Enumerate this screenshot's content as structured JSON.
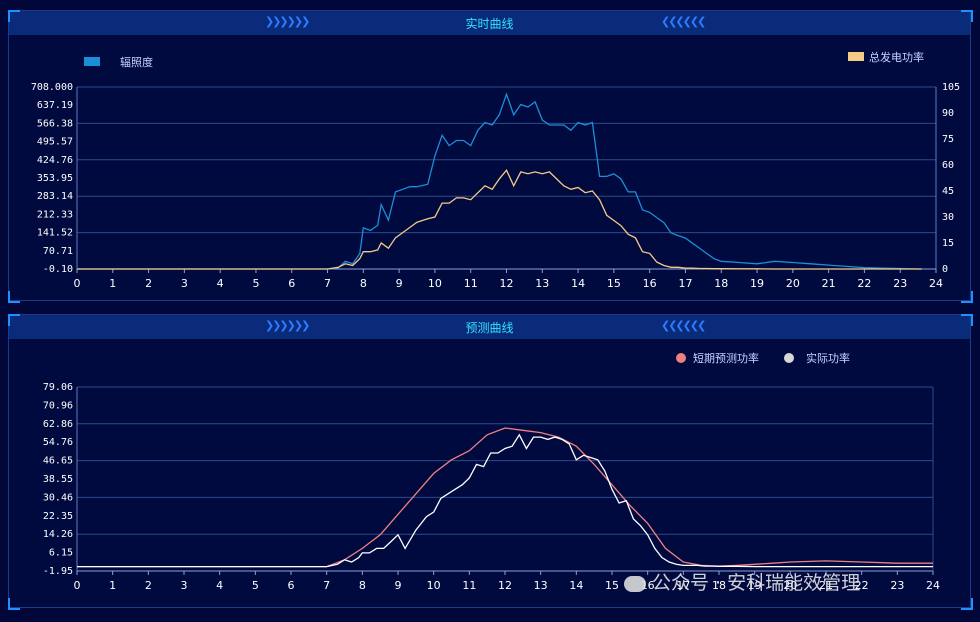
{
  "charts": [
    {
      "title": "实时曲线",
      "type": "line",
      "legend": [
        "辐照度",
        "总发电功率"
      ],
      "left_axis_ticks": [
        "708.000",
        "637.19",
        "566.38",
        "495.57",
        "424.76",
        "353.95",
        "283.14",
        "212.33",
        "141.52",
        "70.71",
        "-0.10"
      ],
      "right_axis_ticks": [
        "105",
        "90",
        "75",
        "60",
        "45",
        "30",
        "15",
        "0"
      ],
      "x_ticks": [
        "0",
        "1",
        "2",
        "3",
        "4",
        "5",
        "6",
        "7",
        "8",
        "9",
        "10",
        "11",
        "12",
        "13",
        "14",
        "15",
        "16",
        "17",
        "18",
        "19",
        "20",
        "21",
        "22",
        "23",
        "24"
      ]
    },
    {
      "title": "预测曲线",
      "type": "line",
      "legend": [
        "短期预测功率",
        "实际功率"
      ],
      "left_axis_ticks": [
        "79.06",
        "70.96",
        "62.86",
        "54.76",
        "46.65",
        "38.55",
        "30.46",
        "22.35",
        "14.26",
        "6.15",
        "-1.95"
      ],
      "x_ticks": [
        "0",
        "1",
        "2",
        "3",
        "4",
        "5",
        "6",
        "7",
        "8",
        "9",
        "10",
        "11",
        "12",
        "13",
        "14",
        "15",
        "16",
        "17",
        "18",
        "19",
        "20",
        "21",
        "22",
        "23",
        "24"
      ]
    }
  ],
  "watermark": "公众号 · 安科瑞能效管理",
  "chart_data": [
    {
      "type": "line",
      "title": "实时曲线",
      "ylim": [
        -0.1,
        708.0
      ],
      "y2lim": [
        0,
        105
      ],
      "xlim": [
        0,
        24
      ],
      "series": [
        {
          "name": "辐照度",
          "axis": "left",
          "color": "#1a8fd6",
          "x": [
            0,
            7.0,
            7.3,
            7.5,
            7.7,
            7.8,
            7.9,
            8.0,
            8.2,
            8.4,
            8.5,
            8.7,
            8.9,
            9.1,
            9.3,
            9.5,
            9.8,
            10.0,
            10.2,
            10.4,
            10.6,
            10.8,
            11.0,
            11.2,
            11.4,
            11.6,
            11.8,
            12.0,
            12.2,
            12.4,
            12.6,
            12.8,
            13.0,
            13.2,
            13.4,
            13.6,
            13.8,
            14.0,
            14.2,
            14.4,
            14.6,
            14.8,
            15.0,
            15.2,
            15.4,
            15.6,
            15.8,
            16.0,
            16.2,
            16.4,
            16.6,
            16.8,
            17.0,
            17.2,
            17.4,
            17.6,
            17.8,
            18.0,
            18.5,
            19.0,
            19.5,
            20.0,
            20.5,
            21.0,
            21.5,
            22.0,
            22.5,
            23.0,
            23.5,
            23.6
          ],
          "y": [
            0,
            0,
            5,
            30,
            20,
            40,
            60,
            160,
            150,
            170,
            250,
            190,
            300,
            310,
            320,
            320,
            330,
            440,
            520,
            480,
            500,
            500,
            480,
            540,
            570,
            560,
            600,
            680,
            600,
            640,
            630,
            650,
            580,
            560,
            560,
            560,
            540,
            570,
            560,
            570,
            360,
            360,
            370,
            350,
            300,
            300,
            230,
            220,
            200,
            180,
            140,
            130,
            120,
            100,
            80,
            60,
            40,
            30,
            25,
            20,
            30,
            25,
            20,
            15,
            10,
            5,
            3,
            2,
            0,
            0
          ]
        },
        {
          "name": "总发电功率",
          "axis": "right",
          "color": "#f5c986",
          "x": [
            0,
            7.0,
            7.3,
            7.5,
            7.7,
            7.8,
            7.9,
            8.0,
            8.2,
            8.4,
            8.5,
            8.7,
            8.9,
            9.1,
            9.3,
            9.5,
            9.8,
            10.0,
            10.2,
            10.4,
            10.6,
            10.8,
            11.0,
            11.2,
            11.4,
            11.6,
            11.8,
            12.0,
            12.2,
            12.4,
            12.6,
            12.8,
            13.0,
            13.2,
            13.4,
            13.6,
            13.8,
            14.0,
            14.2,
            14.4,
            14.6,
            14.8,
            15.0,
            15.2,
            15.4,
            15.6,
            15.8,
            16.0,
            16.2,
            16.4,
            16.6,
            16.8,
            17.0,
            17.2,
            17.4,
            17.6,
            17.8,
            18.0,
            18.5,
            19.0,
            19.5,
            20.0,
            20.5,
            21.0,
            21.5,
            22.0,
            22.5,
            23.0,
            23.5,
            23.6
          ],
          "y": [
            0,
            0,
            1,
            3,
            2,
            4,
            6,
            10,
            10,
            11,
            15,
            12,
            18,
            21,
            24,
            27,
            29,
            30,
            38,
            38,
            41,
            41,
            40,
            44,
            48,
            46,
            52,
            57,
            48,
            56,
            55,
            56,
            55,
            56,
            52,
            48,
            46,
            47,
            44,
            45,
            40,
            31,
            28,
            25,
            20,
            18,
            10,
            9,
            4,
            2,
            1,
            1,
            0.5,
            0.5,
            0.3,
            0.3,
            0.2,
            0.2,
            0.1,
            0.1,
            0,
            0,
            0,
            0,
            0,
            0,
            0,
            0,
            0,
            0
          ]
        }
      ]
    },
    {
      "type": "line",
      "title": "预测曲线",
      "ylim": [
        -1.95,
        79.06
      ],
      "xlim": [
        0,
        24
      ],
      "series": [
        {
          "name": "短期预测功率",
          "color": "#f08080",
          "x": [
            0,
            7.0,
            7.5,
            8.0,
            8.5,
            9.0,
            9.5,
            10.0,
            10.5,
            11.0,
            11.5,
            12.0,
            12.5,
            13.0,
            13.5,
            14.0,
            14.5,
            15.0,
            15.5,
            16.0,
            16.5,
            17.0,
            17.5,
            18.0,
            18.5,
            19.0,
            19.5,
            20.0,
            21.0,
            22.0,
            23.0,
            24.0
          ],
          "y": [
            0,
            0,
            3,
            8,
            14,
            23,
            32,
            41,
            47,
            51,
            58,
            61,
            60,
            59,
            57,
            53,
            45,
            36,
            27,
            19,
            8,
            2,
            0.5,
            0.2,
            0.5,
            1,
            1.5,
            2,
            2.5,
            2,
            1.5,
            1.5
          ]
        },
        {
          "name": "实际功率",
          "color": "#ffffff",
          "x": [
            0,
            7.0,
            7.3,
            7.5,
            7.7,
            7.9,
            8.0,
            8.2,
            8.4,
            8.6,
            8.8,
            9.0,
            9.2,
            9.5,
            9.8,
            10.0,
            10.2,
            10.5,
            10.8,
            11.0,
            11.2,
            11.4,
            11.6,
            11.8,
            12.0,
            12.2,
            12.4,
            12.6,
            12.8,
            13.0,
            13.2,
            13.4,
            13.6,
            13.8,
            14.0,
            14.2,
            14.4,
            14.6,
            14.8,
            15.0,
            15.2,
            15.4,
            15.6,
            15.8,
            16.0,
            16.2,
            16.4,
            16.6,
            16.8,
            17.0,
            17.2,
            17.4,
            17.6,
            17.8,
            18.0,
            18.5,
            19.0,
            20.0,
            21.0,
            22.0,
            23.0,
            24.0
          ],
          "y": [
            0,
            0,
            1,
            3,
            2,
            4,
            6,
            6,
            8,
            8,
            11,
            14,
            8,
            16,
            22,
            24,
            30,
            33,
            36,
            39,
            45,
            44,
            50,
            50,
            52,
            53,
            58,
            52,
            57,
            57,
            56,
            57,
            56,
            54,
            47,
            49,
            48,
            47,
            42,
            34,
            28,
            29,
            21,
            18,
            14,
            8,
            4,
            2,
            1,
            0.5,
            0.5,
            0.5,
            0.2,
            0.2,
            0.1,
            0.1,
            0,
            0,
            0,
            0,
            0,
            0
          ]
        }
      ]
    }
  ]
}
